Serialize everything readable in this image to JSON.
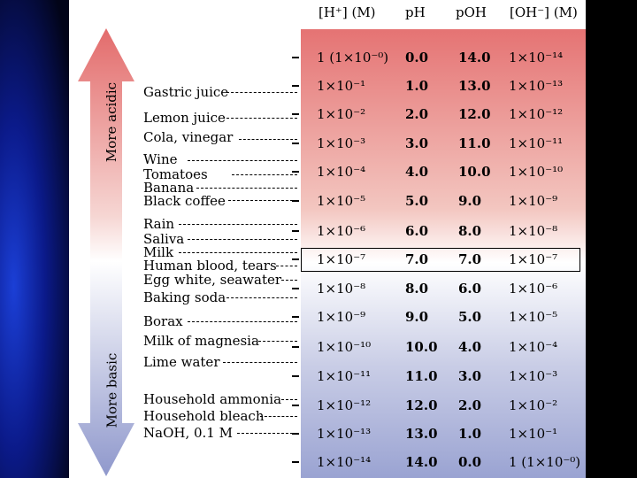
{
  "headers": {
    "h": "[H⁺] (M)",
    "ph": "pH",
    "poh": "pOH",
    "oh": "[OH⁻] (M)"
  },
  "rows": [
    {
      "h": "1 (1×10⁻⁰)",
      "ph": "0.0",
      "poh": "14.0",
      "oh": "1×10⁻¹⁴"
    },
    {
      "h": "1×10⁻¹",
      "ph": "1.0",
      "poh": "13.0",
      "oh": "1×10⁻¹³"
    },
    {
      "h": "1×10⁻²",
      "ph": "2.0",
      "poh": "12.0",
      "oh": "1×10⁻¹²"
    },
    {
      "h": "1×10⁻³",
      "ph": "3.0",
      "poh": "11.0",
      "oh": "1×10⁻¹¹"
    },
    {
      "h": "1×10⁻⁴",
      "ph": "4.0",
      "poh": "10.0",
      "oh": "1×10⁻¹⁰"
    },
    {
      "h": "1×10⁻⁵",
      "ph": "5.0",
      "poh": "9.0",
      "oh": "1×10⁻⁹"
    },
    {
      "h": "1×10⁻⁶",
      "ph": "6.0",
      "poh": "8.0",
      "oh": "1×10⁻⁸"
    },
    {
      "h": "1×10⁻⁷",
      "ph": "7.0",
      "poh": "7.0",
      "oh": "1×10⁻⁷"
    },
    {
      "h": "1×10⁻⁸",
      "ph": "8.0",
      "poh": "6.0",
      "oh": "1×10⁻⁶"
    },
    {
      "h": "1×10⁻⁹",
      "ph": "9.0",
      "poh": "5.0",
      "oh": "1×10⁻⁵"
    },
    {
      "h": "1×10⁻¹⁰",
      "ph": "10.0",
      "poh": "4.0",
      "oh": "1×10⁻⁴"
    },
    {
      "h": "1×10⁻¹¹",
      "ph": "11.0",
      "poh": "3.0",
      "oh": "1×10⁻³"
    },
    {
      "h": "1×10⁻¹²",
      "ph": "12.0",
      "poh": "2.0",
      "oh": "1×10⁻²"
    },
    {
      "h": "1×10⁻¹³",
      "ph": "13.0",
      "poh": "1.0",
      "oh": "1×10⁻¹"
    },
    {
      "h": "1×10⁻¹⁴",
      "ph": "14.0",
      "poh": "0.0",
      "oh": "1 (1×10⁻⁰)"
    }
  ],
  "substances": {
    "s0": "Gastric juice",
    "s1": "Lemon juice",
    "s2": "Cola, vinegar",
    "s3": "Wine",
    "s4": "Tomatoes",
    "s5": "Banana",
    "s6": "Black coffee",
    "s7": "Rain",
    "s8": "Saliva",
    "s9": "Milk",
    "s10": "Human blood, tears",
    "s11": "Egg white, seawater",
    "s12": "Baking soda",
    "s13": "Borax",
    "s14": "Milk of magnesia",
    "s15": "Lime water",
    "s16": "Household ammonia",
    "s17": "Household bleach",
    "s18": "NaOH, 0.1 M"
  },
  "arrow": {
    "top_label": "More acidic",
    "bottom_label": "More basic"
  }
}
